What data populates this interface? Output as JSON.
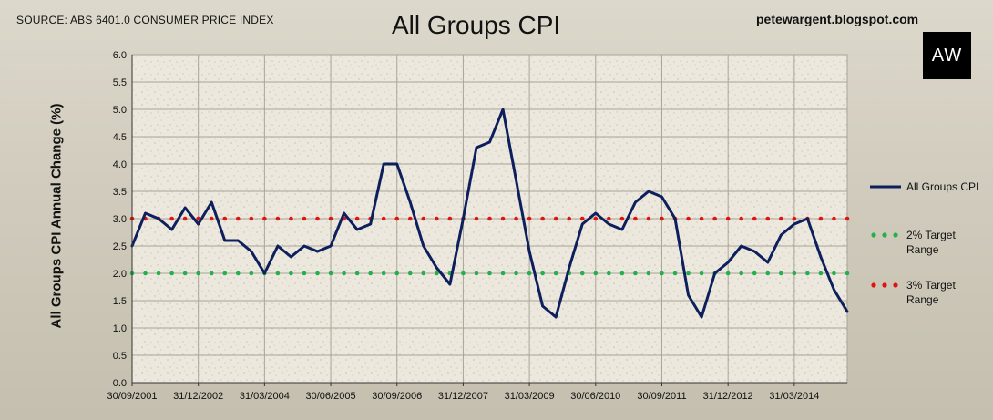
{
  "header": {
    "source": "SOURCE: ABS 6401.0 CONSUMER PRICE INDEX",
    "title": "All Groups CPI",
    "blog": "petewargent.blogspot.com",
    "logo_text": "AW"
  },
  "chart_data": {
    "type": "line",
    "title": "All Groups CPI",
    "ylabel": "All Groups CPI Annual Change (%)",
    "xlabel": "",
    "ylim": [
      0,
      6
    ],
    "y_ticks": [
      "0.0",
      "0.5",
      "1.0",
      "1.5",
      "2.0",
      "2.5",
      "3.0",
      "3.5",
      "4.0",
      "4.5",
      "5.0",
      "5.5",
      "6.0"
    ],
    "x_tick_labels": [
      "30/09/2001",
      "31/12/2002",
      "31/03/2004",
      "30/06/2005",
      "30/09/2006",
      "31/12/2007",
      "31/03/2009",
      "30/06/2010",
      "30/09/2011",
      "31/12/2012",
      "31/03/2014"
    ],
    "grid": true,
    "legend_position": "right",
    "series": [
      {
        "name": "All Groups CPI",
        "color": "#0d1f5c",
        "style": "solid",
        "values": [
          2.5,
          3.1,
          3.0,
          2.8,
          3.2,
          2.9,
          3.3,
          2.6,
          2.6,
          2.4,
          2.0,
          2.5,
          2.3,
          2.5,
          2.4,
          2.5,
          3.1,
          2.8,
          2.9,
          4.0,
          4.0,
          3.3,
          2.5,
          2.1,
          1.8,
          3.0,
          4.3,
          4.4,
          5.0,
          3.7,
          2.4,
          1.4,
          1.2,
          2.1,
          2.9,
          3.1,
          2.9,
          2.8,
          3.3,
          3.5,
          3.4,
          3.0,
          1.6,
          1.2,
          2.0,
          2.2,
          2.5,
          2.4,
          2.2,
          2.7,
          2.9,
          3.0,
          2.3,
          1.7,
          1.3
        ]
      },
      {
        "name": "2% Target Range",
        "color": "#22b14c",
        "style": "dotted",
        "constant": 2.0
      },
      {
        "name": "3% Target Range",
        "color": "#e0140f",
        "style": "dotted",
        "constant": 3.0
      }
    ]
  }
}
